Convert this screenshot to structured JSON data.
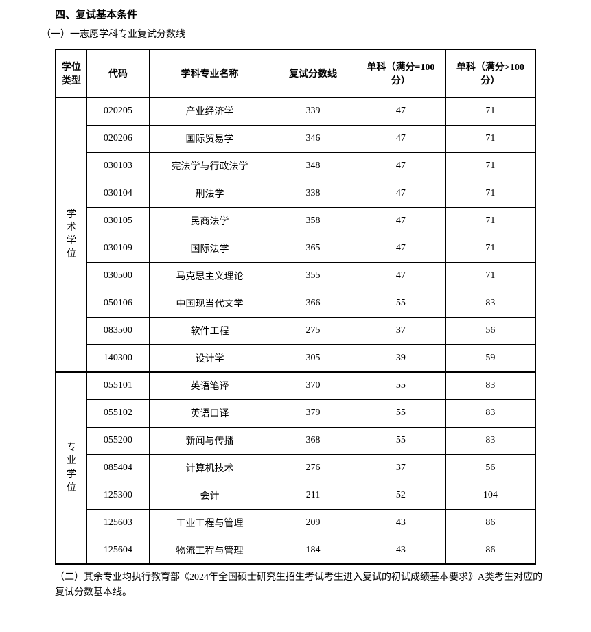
{
  "heading": {
    "title": "四、复试基本条件",
    "subtitle": "（一）一志愿学科专业复试分数线"
  },
  "table": {
    "columns": {
      "degree_type": "学位类型",
      "code": "代码",
      "subject_name": "学科专业名称",
      "retest_score": "复试分数线",
      "single_100": "单科（满分=100 分）",
      "single_gt100": "单科（满分>100 分）"
    },
    "groups": [
      {
        "label": "学术学位",
        "rows": [
          {
            "code": "020205",
            "name": "产业经济学",
            "score": "339",
            "s100": "47",
            "sg100": "71"
          },
          {
            "code": "020206",
            "name": "国际贸易学",
            "score": "346",
            "s100": "47",
            "sg100": "71"
          },
          {
            "code": "030103",
            "name": "宪法学与行政法学",
            "score": "348",
            "s100": "47",
            "sg100": "71"
          },
          {
            "code": "030104",
            "name": "刑法学",
            "score": "338",
            "s100": "47",
            "sg100": "71"
          },
          {
            "code": "030105",
            "name": "民商法学",
            "score": "358",
            "s100": "47",
            "sg100": "71"
          },
          {
            "code": "030109",
            "name": "国际法学",
            "score": "365",
            "s100": "47",
            "sg100": "71"
          },
          {
            "code": "030500",
            "name": "马克思主义理论",
            "score": "355",
            "s100": "47",
            "sg100": "71"
          },
          {
            "code": "050106",
            "name": "中国现当代文学",
            "score": "366",
            "s100": "55",
            "sg100": "83"
          },
          {
            "code": "083500",
            "name": "软件工程",
            "score": "275",
            "s100": "37",
            "sg100": "56"
          },
          {
            "code": "140300",
            "name": "设计学",
            "score": "305",
            "s100": "39",
            "sg100": "59"
          }
        ]
      },
      {
        "label": "专业学位",
        "rows": [
          {
            "code": "055101",
            "name": "英语笔译",
            "score": "370",
            "s100": "55",
            "sg100": "83"
          },
          {
            "code": "055102",
            "name": "英语口译",
            "score": "379",
            "s100": "55",
            "sg100": "83"
          },
          {
            "code": "055200",
            "name": "新闻与传播",
            "score": "368",
            "s100": "55",
            "sg100": "83"
          },
          {
            "code": "085404",
            "name": "计算机技术",
            "score": "276",
            "s100": "37",
            "sg100": "56"
          },
          {
            "code": "125300",
            "name": "会计",
            "score": "211",
            "s100": "52",
            "sg100": "104"
          },
          {
            "code": "125603",
            "name": "工业工程与管理",
            "score": "209",
            "s100": "43",
            "sg100": "86"
          },
          {
            "code": "125604",
            "name": "物流工程与管理",
            "score": "184",
            "s100": "43",
            "sg100": "86"
          }
        ]
      }
    ]
  },
  "footer": {
    "text": "（二）其余专业均执行教育部《2024年全国硕士研究生招生考试考生进入复试的初试成绩基本要求》A类考生对应的复试分数基本线。"
  },
  "styling": {
    "background_color": "#ffffff",
    "text_color": "#000000",
    "border_color": "#000000",
    "font_family": "SimSun",
    "heading_fontsize": 15,
    "body_fontsize": 14,
    "cell_fontsize": 14
  }
}
